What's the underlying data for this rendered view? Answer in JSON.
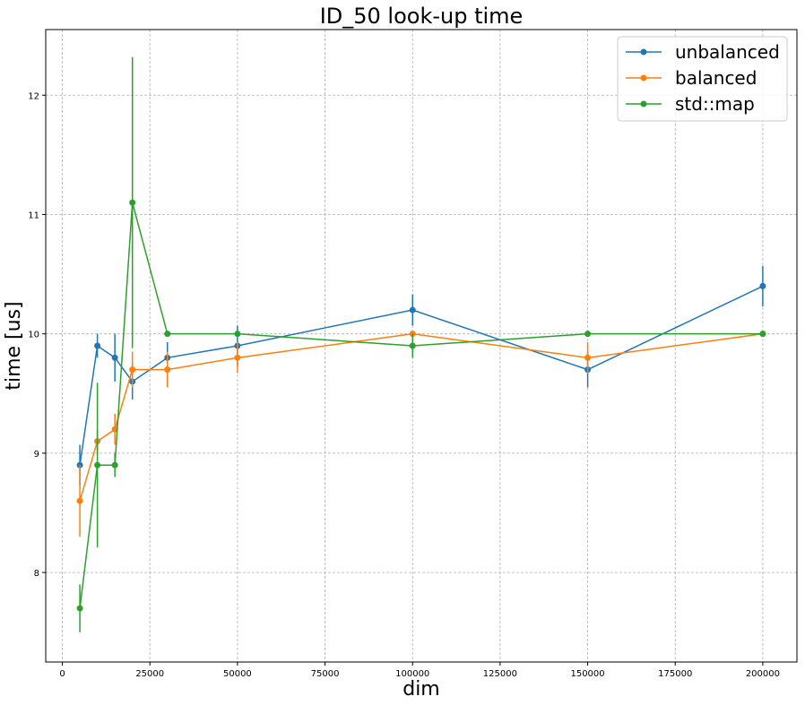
{
  "chart_data": {
    "type": "line",
    "title": "ID_50 look-up time",
    "xlabel": "dim",
    "ylabel": "time [us]",
    "xlim": [
      -4750,
      209750
    ],
    "ylim": [
      7.25,
      12.55
    ],
    "xticks": [
      0,
      25000,
      50000,
      75000,
      100000,
      125000,
      150000,
      175000,
      200000
    ],
    "yticks": [
      8,
      9,
      10,
      11,
      12
    ],
    "grid": true,
    "legend_position": "top-right",
    "x": [
      5000,
      10000,
      15000,
      20000,
      30000,
      50000,
      100000,
      150000,
      200000
    ],
    "series": [
      {
        "name": "unbalanced",
        "color": "#1f77b4",
        "values": [
          8.9,
          9.9,
          9.8,
          9.6,
          9.8,
          9.9,
          10.2,
          9.7,
          10.4
        ],
        "errors": [
          0.17,
          0.1,
          0.2,
          0.15,
          0.13,
          0.17,
          0.13,
          0.15,
          0.17
        ]
      },
      {
        "name": "balanced",
        "color": "#ff7f0e",
        "values": [
          8.6,
          9.1,
          9.2,
          9.7,
          9.7,
          9.8,
          10.0,
          9.8,
          10.0
        ],
        "errors": [
          0.3,
          0.1,
          0.13,
          0.15,
          0.15,
          0.13,
          0.02,
          0.13,
          0.02
        ]
      },
      {
        "name": "std::map",
        "color": "#2ca02c",
        "values": [
          7.7,
          8.9,
          8.9,
          11.1,
          10.0,
          10.0,
          9.9,
          10.0,
          10.0
        ],
        "errors": [
          0.2,
          0.69,
          0.1,
          1.22,
          0.02,
          0.02,
          0.1,
          0.02,
          0.02
        ]
      }
    ]
  }
}
